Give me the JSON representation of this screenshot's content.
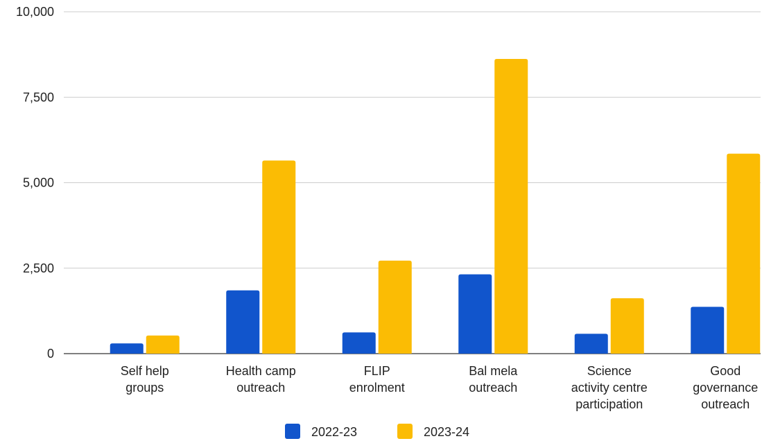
{
  "chart_data": {
    "type": "bar",
    "title": "",
    "xlabel": "",
    "ylabel": "",
    "ylim": [
      0,
      10000
    ],
    "yticks": [
      "0",
      "2,500",
      "5,000",
      "7,500",
      "10,000"
    ],
    "yticks_values": [
      0,
      2500,
      5000,
      7500,
      10000
    ],
    "grid": true,
    "legend_position": "bottom",
    "categories": [
      [
        "Self help",
        "groups"
      ],
      [
        "Health camp",
        "outreach"
      ],
      [
        "FLIP",
        "enrolment"
      ],
      [
        "Bal mela",
        "outreach"
      ],
      [
        "Science",
        "activity centre",
        "participation"
      ],
      [
        "Good",
        "governance",
        "outreach"
      ]
    ],
    "series": [
      {
        "name": "2022-23",
        "color": "#1155CC",
        "values": [
          300,
          1850,
          620,
          2320,
          580,
          1370
        ]
      },
      {
        "name": "2023-24",
        "color": "#FBBC04",
        "values": [
          530,
          5650,
          2720,
          8620,
          1620,
          5850
        ]
      }
    ]
  }
}
